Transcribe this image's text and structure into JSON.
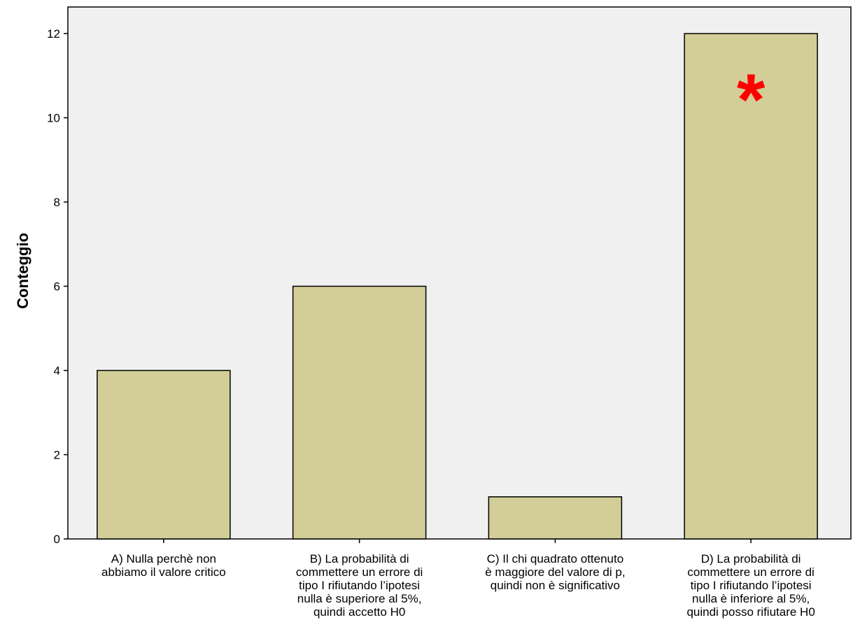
{
  "chart_data": {
    "type": "bar",
    "ylabel": "Conteggio",
    "xlabel": "",
    "ylim": [
      0,
      12.6
    ],
    "yticks": [
      0,
      2,
      4,
      6,
      8,
      10,
      12
    ],
    "categories": [
      [
        "A) Nulla perchè non",
        "abbiamo il valore critico"
      ],
      [
        "B) La probabilità di",
        "commettere un errore di",
        "tipo I rifiutando l’ipotesi",
        "nulla è superiore al 5%,",
        "quindi accetto H0"
      ],
      [
        "C) Il chi quadrato ottenuto",
        "è maggiore del valore di p,",
        "quindi non è significativo"
      ],
      [
        "D) La probabilità di",
        "commettere un errore di",
        "tipo I rifiutando l’ipotesi",
        "nulla è inferiore al 5%,",
        "quindi posso rifiutare H0"
      ]
    ],
    "values": [
      4,
      6,
      1,
      12
    ],
    "grid": false,
    "highlight": {
      "category_index": 3,
      "symbol": "*",
      "color": "#ff0000"
    }
  },
  "colors": {
    "plot_background": "#f0f0f0",
    "bar_fill": "#d3ce97",
    "bar_stroke": "#000000",
    "axis": "#000000"
  }
}
